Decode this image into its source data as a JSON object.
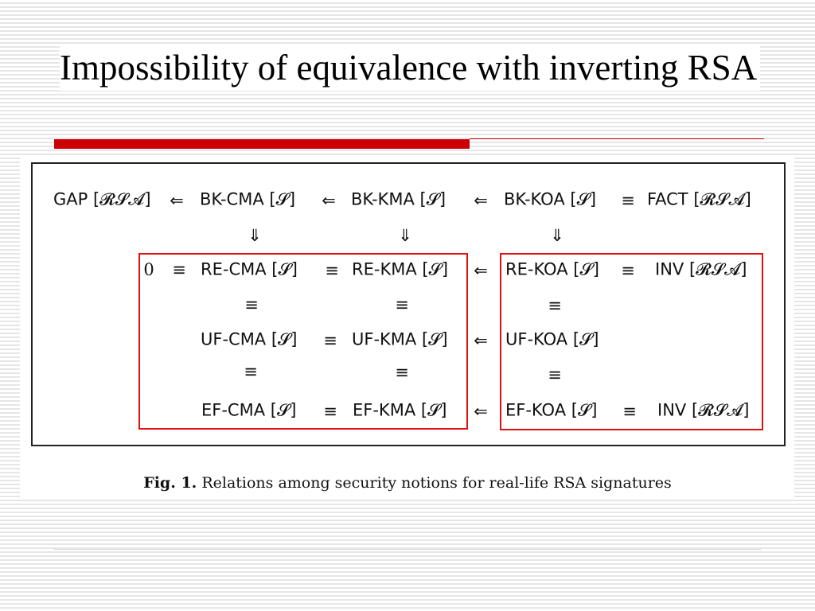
{
  "slide": {
    "title": "Impossibility of equivalence with inverting RSA",
    "accent_color": "#cc0000",
    "box_color": "#e01010"
  },
  "diagram": {
    "row1": [
      "GAP [𝓡𝓢𝓐]",
      "BK-CMA [𝓢]",
      "BK-KMA [𝓢]",
      "BK-KOA [𝓢]",
      "FACT [𝓡𝓢𝓐]"
    ],
    "row3": [
      "0",
      "RE-CMA [𝓢]",
      "RE-KMA [𝓢]",
      "RE-KOA [𝓢]",
      "INV [𝓡𝓢𝓐]"
    ],
    "row5": [
      "UF-CMA [𝓢]",
      "UF-KMA [𝓢]",
      "UF-KOA [𝓢]"
    ],
    "row7": [
      "EF-CMA [𝓢]",
      "EF-KMA [𝓢]",
      "EF-KOA [𝓢]",
      "INV [𝓡𝓢𝓐]"
    ],
    "sym": {
      "left_arrow": "⇐",
      "down_arrow": "⇓",
      "equiv": "≡"
    }
  },
  "caption": {
    "label": "Fig. 1.",
    "text": " Relations among security notions for real-life RSA signatures"
  }
}
